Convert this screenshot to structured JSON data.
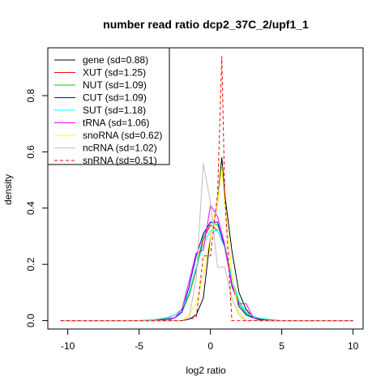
{
  "chart_data": {
    "type": "line",
    "title": "number read ratio dcp2_37C_2/upf1_1",
    "xlabel": "log2 ratio",
    "ylabel": "density",
    "xlim": [
      -11.4,
      10.7
    ],
    "ylim": [
      -0.03,
      0.97
    ],
    "x_ticks": [
      -10,
      -5,
      0,
      5,
      10
    ],
    "y_ticks": [
      0.0,
      0.2,
      0.4,
      0.6,
      0.8
    ],
    "x_tick_labels": [
      "-10",
      "-5",
      "0",
      "5",
      "10"
    ],
    "y_tick_labels": [
      "0.0",
      "0.2",
      "0.4",
      "0.6",
      "0.8"
    ],
    "grid": false,
    "legend_position": "top-left",
    "series": [
      {
        "name": "gene (sd=0.88)",
        "color": "#000000",
        "dash": "solid",
        "x": [
          -10.5,
          -2.0,
          -1.5,
          -1.0,
          -0.5,
          0.0,
          0.5,
          0.8,
          1.0,
          1.5,
          2.0,
          2.5,
          3.0,
          3.5,
          4.0,
          10.0
        ],
        "y": [
          0.0,
          0.0,
          0.005,
          0.02,
          0.08,
          0.3,
          0.42,
          0.58,
          0.45,
          0.25,
          0.1,
          0.04,
          0.01,
          0.005,
          0.0,
          0.0
        ]
      },
      {
        "name": "XUT (sd=1.25)",
        "color": "#ff0000",
        "dash": "solid",
        "x": [
          -10.5,
          -5.0,
          -4.0,
          -3.0,
          -2.5,
          -2.0,
          -1.5,
          -1.0,
          -0.5,
          0.0,
          0.5,
          1.0,
          1.5,
          2.0,
          2.5,
          3.0,
          3.5,
          4.0,
          4.5,
          10.0
        ],
        "y": [
          0.0,
          0.0,
          0.003,
          0.01,
          0.02,
          0.04,
          0.09,
          0.18,
          0.29,
          0.34,
          0.32,
          0.26,
          0.15,
          0.07,
          0.03,
          0.015,
          0.008,
          0.003,
          0.0,
          0.0
        ]
      },
      {
        "name": "NUT (sd=1.09)",
        "color": "#00cc00",
        "dash": "solid",
        "x": [
          -10.5,
          -4.0,
          -3.0,
          -2.5,
          -2.0,
          -1.5,
          -1.0,
          -0.5,
          0.0,
          0.5,
          1.0,
          1.5,
          2.0,
          2.5,
          3.0,
          3.5,
          4.0,
          10.0
        ],
        "y": [
          0.0,
          0.0,
          0.005,
          0.01,
          0.03,
          0.09,
          0.19,
          0.3,
          0.35,
          0.34,
          0.27,
          0.15,
          0.06,
          0.025,
          0.01,
          0.005,
          0.0,
          0.0
        ]
      },
      {
        "name": "CUT (sd=1.09)",
        "color": "#0000ff",
        "dash": "solid",
        "x": [
          -10.5,
          -4.0,
          -3.0,
          -2.5,
          -2.0,
          -1.5,
          -1.0,
          -0.5,
          0.0,
          0.5,
          1.0,
          1.5,
          2.0,
          2.5,
          3.0,
          3.5,
          4.0,
          10.0
        ],
        "y": [
          0.0,
          0.0,
          0.005,
          0.01,
          0.03,
          0.12,
          0.23,
          0.31,
          0.35,
          0.35,
          0.26,
          0.13,
          0.05,
          0.02,
          0.01,
          0.003,
          0.0,
          0.0
        ]
      },
      {
        "name": "SUT (sd=1.18)",
        "color": "#00ffff",
        "dash": "solid",
        "x": [
          -10.5,
          -5.0,
          -4.0,
          -3.0,
          -2.5,
          -2.0,
          -1.5,
          -1.0,
          -0.5,
          0.0,
          0.5,
          1.0,
          1.5,
          2.0,
          2.5,
          3.0,
          3.5,
          4.0,
          4.5,
          5.0,
          10.0
        ],
        "y": [
          0.0,
          0.0,
          0.003,
          0.008,
          0.02,
          0.04,
          0.1,
          0.19,
          0.27,
          0.32,
          0.32,
          0.26,
          0.15,
          0.07,
          0.03,
          0.015,
          0.008,
          0.005,
          0.003,
          0.0,
          0.0
        ]
      },
      {
        "name": "tRNA (sd=1.06)",
        "color": "#ff00ff",
        "dash": "solid",
        "x": [
          -10.5,
          -3.0,
          -2.5,
          -2.0,
          -1.5,
          -1.0,
          -0.5,
          0.0,
          0.5,
          1.0,
          1.5,
          2.0,
          2.5,
          3.0,
          3.5,
          10.0
        ],
        "y": [
          0.0,
          0.0,
          0.01,
          0.04,
          0.14,
          0.24,
          0.25,
          0.41,
          0.37,
          0.27,
          0.12,
          0.06,
          0.06,
          0.01,
          0.0,
          0.0
        ]
      },
      {
        "name": "snoRNA (sd=0.62)",
        "color": "#ffff00",
        "dash": "solid",
        "x": [
          -10.5,
          -2.0,
          -1.5,
          -1.0,
          -0.5,
          0.0,
          0.5,
          0.8,
          1.0,
          1.5,
          2.0,
          2.5,
          10.0
        ],
        "y": [
          0.0,
          0.0,
          0.02,
          0.06,
          0.16,
          0.3,
          0.42,
          0.55,
          0.42,
          0.16,
          0.03,
          0.0,
          0.0
        ]
      },
      {
        "name": "ncRNA (sd=1.02)",
        "color": "#bebebe",
        "dash": "solid",
        "x": [
          -10.5,
          -2.0,
          -1.5,
          -1.0,
          -0.5,
          0.0,
          0.5,
          1.0,
          1.5,
          2.0,
          2.5,
          10.0
        ],
        "y": [
          0.0,
          0.0,
          0.01,
          0.15,
          0.56,
          0.42,
          0.19,
          0.19,
          0.08,
          0.02,
          0.0,
          0.0
        ]
      },
      {
        "name": "snRNA (sd=0.51)",
        "color": "#ff0000",
        "dash": "dashed",
        "x": [
          -10.5,
          -3.5,
          -2.0,
          -1.0,
          -0.5,
          0.0,
          0.5,
          0.8,
          1.0,
          1.5,
          10.0
        ],
        "y": [
          0.0,
          0.0,
          0.0,
          0.01,
          0.23,
          0.23,
          0.45,
          0.94,
          0.45,
          0.0,
          0.0
        ]
      }
    ]
  }
}
